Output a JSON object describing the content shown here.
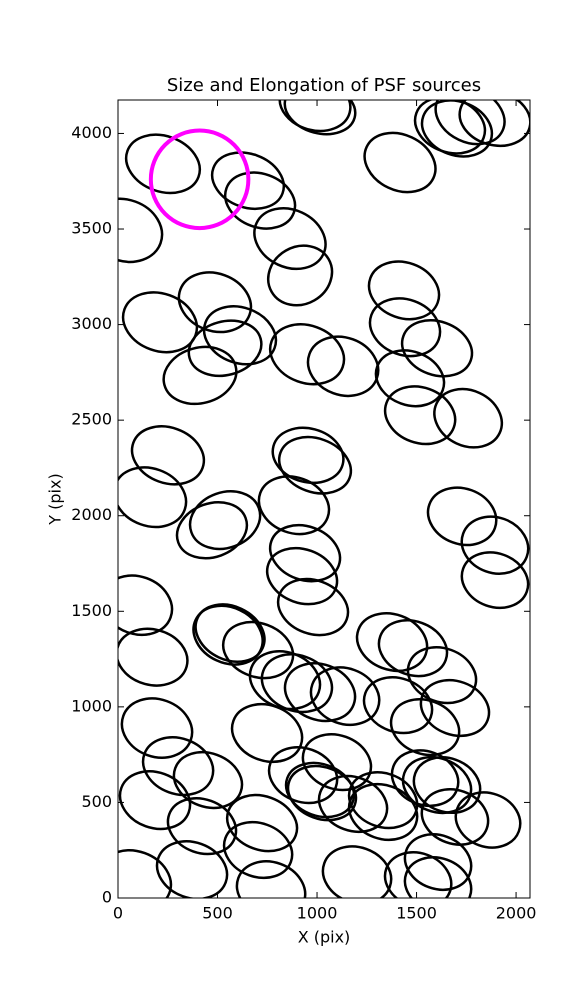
{
  "chart_data": {
    "type": "ellipse",
    "title": "Size and Elongation of PSF sources",
    "xlabel": "X (pix)",
    "ylabel": "Y (pix)",
    "xlim": [
      0,
      2070
    ],
    "ylim": [
      0,
      4175
    ],
    "xticks": [
      0,
      500,
      1000,
      1500,
      2000
    ],
    "yticks": [
      0,
      500,
      1000,
      1500,
      2000,
      2500,
      3000,
      3500,
      4000
    ],
    "color": "#000000",
    "sources": [
      {
        "x": 990,
        "y": 4157,
        "a": 180,
        "b": 140,
        "theta": 15
      },
      {
        "x": 1015,
        "y": 4131,
        "a": 180,
        "b": 130,
        "theta": 15
      },
      {
        "x": 1417,
        "y": 3848,
        "a": 185,
        "b": 145,
        "theta": 25
      },
      {
        "x": 1668,
        "y": 4042,
        "a": 180,
        "b": 140,
        "theta": 20
      },
      {
        "x": 1703,
        "y": 4026,
        "a": 180,
        "b": 140,
        "theta": 20
      },
      {
        "x": 1769,
        "y": 4094,
        "a": 180,
        "b": 140,
        "theta": 25
      },
      {
        "x": 1894,
        "y": 4079,
        "a": 180,
        "b": 140,
        "theta": 15
      },
      {
        "x": 226,
        "y": 3841,
        "a": 190,
        "b": 145,
        "theta": 20
      },
      {
        "x": 653,
        "y": 3753,
        "a": 185,
        "b": 140,
        "theta": 20
      },
      {
        "x": 714,
        "y": 3649,
        "a": 180,
        "b": 140,
        "theta": 20
      },
      {
        "x": 864,
        "y": 3450,
        "a": 185,
        "b": 150,
        "theta": 25
      },
      {
        "x": 915,
        "y": 3257,
        "a": 165,
        "b": 150,
        "theta": -30
      },
      {
        "x": 35,
        "y": 3493,
        "a": 190,
        "b": 160,
        "theta": 20
      },
      {
        "x": 211,
        "y": 3012,
        "a": 190,
        "b": 150,
        "theta": 20
      },
      {
        "x": 487,
        "y": 3117,
        "a": 185,
        "b": 150,
        "theta": 20
      },
      {
        "x": 613,
        "y": 2944,
        "a": 185,
        "b": 145,
        "theta": 20
      },
      {
        "x": 538,
        "y": 2876,
        "a": 185,
        "b": 140,
        "theta": -15
      },
      {
        "x": 412,
        "y": 2734,
        "a": 185,
        "b": 145,
        "theta": -15
      },
      {
        "x": 950,
        "y": 2845,
        "a": 190,
        "b": 150,
        "theta": 20
      },
      {
        "x": 1131,
        "y": 2782,
        "a": 180,
        "b": 150,
        "theta": 20
      },
      {
        "x": 1437,
        "y": 3179,
        "a": 180,
        "b": 145,
        "theta": 20
      },
      {
        "x": 1442,
        "y": 2986,
        "a": 180,
        "b": 145,
        "theta": 20
      },
      {
        "x": 1603,
        "y": 2876,
        "a": 180,
        "b": 140,
        "theta": 20
      },
      {
        "x": 1467,
        "y": 2719,
        "a": 175,
        "b": 140,
        "theta": 20
      },
      {
        "x": 1518,
        "y": 2526,
        "a": 180,
        "b": 145,
        "theta": 20
      },
      {
        "x": 1759,
        "y": 2510,
        "a": 175,
        "b": 145,
        "theta": 25
      },
      {
        "x": 251,
        "y": 2316,
        "a": 185,
        "b": 145,
        "theta": 20
      },
      {
        "x": 161,
        "y": 2097,
        "a": 185,
        "b": 150,
        "theta": 20
      },
      {
        "x": 955,
        "y": 2316,
        "a": 180,
        "b": 140,
        "theta": 15
      },
      {
        "x": 990,
        "y": 2264,
        "a": 185,
        "b": 140,
        "theta": 20
      },
      {
        "x": 884,
        "y": 2055,
        "a": 180,
        "b": 145,
        "theta": 20
      },
      {
        "x": 472,
        "y": 1924,
        "a": 180,
        "b": 140,
        "theta": -20
      },
      {
        "x": 538,
        "y": 1977,
        "a": 180,
        "b": 145,
        "theta": -20
      },
      {
        "x": 940,
        "y": 1804,
        "a": 180,
        "b": 140,
        "theta": 20
      },
      {
        "x": 925,
        "y": 1684,
        "a": 180,
        "b": 140,
        "theta": 20
      },
      {
        "x": 980,
        "y": 1522,
        "a": 180,
        "b": 140,
        "theta": 20
      },
      {
        "x": 1729,
        "y": 1997,
        "a": 175,
        "b": 145,
        "theta": 20
      },
      {
        "x": 1894,
        "y": 1846,
        "a": 170,
        "b": 145,
        "theta": 20
      },
      {
        "x": 1894,
        "y": 1663,
        "a": 170,
        "b": 140,
        "theta": 20
      },
      {
        "x": 95,
        "y": 1532,
        "a": 180,
        "b": 150,
        "theta": 20
      },
      {
        "x": 171,
        "y": 1260,
        "a": 180,
        "b": 145,
        "theta": 15
      },
      {
        "x": 563,
        "y": 1386,
        "a": 180,
        "b": 140,
        "theta": 25
      },
      {
        "x": 553,
        "y": 1375,
        "a": 180,
        "b": 145,
        "theta": 25
      },
      {
        "x": 704,
        "y": 1297,
        "a": 180,
        "b": 140,
        "theta": 20
      },
      {
        "x": 839,
        "y": 1140,
        "a": 180,
        "b": 145,
        "theta": 20
      },
      {
        "x": 899,
        "y": 1124,
        "a": 180,
        "b": 145,
        "theta": 20
      },
      {
        "x": 1015,
        "y": 1077,
        "a": 180,
        "b": 145,
        "theta": 20
      },
      {
        "x": 1141,
        "y": 1056,
        "a": 175,
        "b": 145,
        "theta": 20
      },
      {
        "x": 1377,
        "y": 1339,
        "a": 180,
        "b": 145,
        "theta": 20
      },
      {
        "x": 1482,
        "y": 1307,
        "a": 175,
        "b": 140,
        "theta": 20
      },
      {
        "x": 1628,
        "y": 1166,
        "a": 175,
        "b": 140,
        "theta": 20
      },
      {
        "x": 1407,
        "y": 1009,
        "a": 175,
        "b": 140,
        "theta": 20
      },
      {
        "x": 1543,
        "y": 894,
        "a": 175,
        "b": 140,
        "theta": 20
      },
      {
        "x": 1693,
        "y": 994,
        "a": 175,
        "b": 140,
        "theta": 20
      },
      {
        "x": 196,
        "y": 889,
        "a": 180,
        "b": 150,
        "theta": 20
      },
      {
        "x": 749,
        "y": 863,
        "a": 180,
        "b": 145,
        "theta": 20
      },
      {
        "x": 302,
        "y": 690,
        "a": 180,
        "b": 145,
        "theta": 20
      },
      {
        "x": 452,
        "y": 617,
        "a": 175,
        "b": 140,
        "theta": 20
      },
      {
        "x": 186,
        "y": 512,
        "a": 180,
        "b": 145,
        "theta": 20
      },
      {
        "x": 422,
        "y": 376,
        "a": 175,
        "b": 140,
        "theta": 20
      },
      {
        "x": 930,
        "y": 643,
        "a": 175,
        "b": 140,
        "theta": 20
      },
      {
        "x": 1100,
        "y": 711,
        "a": 175,
        "b": 140,
        "theta": 20
      },
      {
        "x": 1015,
        "y": 565,
        "a": 175,
        "b": 135,
        "theta": 20
      },
      {
        "x": 1025,
        "y": 549,
        "a": 175,
        "b": 135,
        "theta": 20
      },
      {
        "x": 1181,
        "y": 492,
        "a": 175,
        "b": 140,
        "theta": 20
      },
      {
        "x": 1332,
        "y": 512,
        "a": 175,
        "b": 140,
        "theta": 20
      },
      {
        "x": 1332,
        "y": 450,
        "a": 175,
        "b": 140,
        "theta": 20
      },
      {
        "x": 1543,
        "y": 627,
        "a": 170,
        "b": 140,
        "theta": 20
      },
      {
        "x": 1603,
        "y": 591,
        "a": 175,
        "b": 140,
        "theta": 20
      },
      {
        "x": 1653,
        "y": 591,
        "a": 170,
        "b": 140,
        "theta": 20
      },
      {
        "x": 1693,
        "y": 424,
        "a": 170,
        "b": 140,
        "theta": 20
      },
      {
        "x": 1859,
        "y": 408,
        "a": 165,
        "b": 140,
        "theta": 20
      },
      {
        "x": 724,
        "y": 392,
        "a": 180,
        "b": 140,
        "theta": 20
      },
      {
        "x": 704,
        "y": 251,
        "a": 175,
        "b": 140,
        "theta": 20
      },
      {
        "x": 372,
        "y": 146,
        "a": 180,
        "b": 145,
        "theta": 20
      },
      {
        "x": 85,
        "y": 94,
        "a": 185,
        "b": 150,
        "theta": 20
      },
      {
        "x": 769,
        "y": 42,
        "a": 175,
        "b": 145,
        "theta": 20
      },
      {
        "x": 1201,
        "y": 120,
        "a": 175,
        "b": 145,
        "theta": 20
      },
      {
        "x": 1508,
        "y": 94,
        "a": 170,
        "b": 140,
        "theta": 20
      },
      {
        "x": 1608,
        "y": 188,
        "a": 170,
        "b": 140,
        "theta": 20
      },
      {
        "x": 1608,
        "y": 68,
        "a": 170,
        "b": 140,
        "theta": 20
      }
    ],
    "highlight": {
      "x": 410,
      "y": 3760,
      "r": 245,
      "color": "#ff00ff"
    }
  }
}
